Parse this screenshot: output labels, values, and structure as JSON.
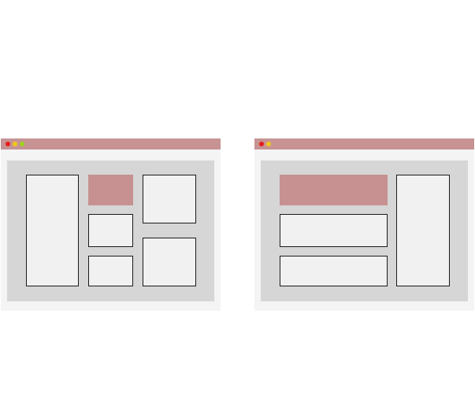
{
  "colors": {
    "titlebar": "#c79393",
    "window_bg": "#f4f4f4",
    "content_bg": "#d6d6d6",
    "panel_bg": "#f1f1f1",
    "panel_border": "#1a1a1a",
    "accent_panel": "#c69190",
    "dot_red": "#e81c1c",
    "dot_yellow": "#f2c81a",
    "dot_green": "#9ad41c"
  },
  "windows": [
    {
      "title_dots": [
        "red",
        "yellow",
        "green"
      ],
      "panel_count": 6,
      "accent_panel_count": 1
    },
    {
      "title_dots": [
        "red",
        "yellow"
      ],
      "panel_count": 4,
      "accent_panel_count": 1
    }
  ]
}
